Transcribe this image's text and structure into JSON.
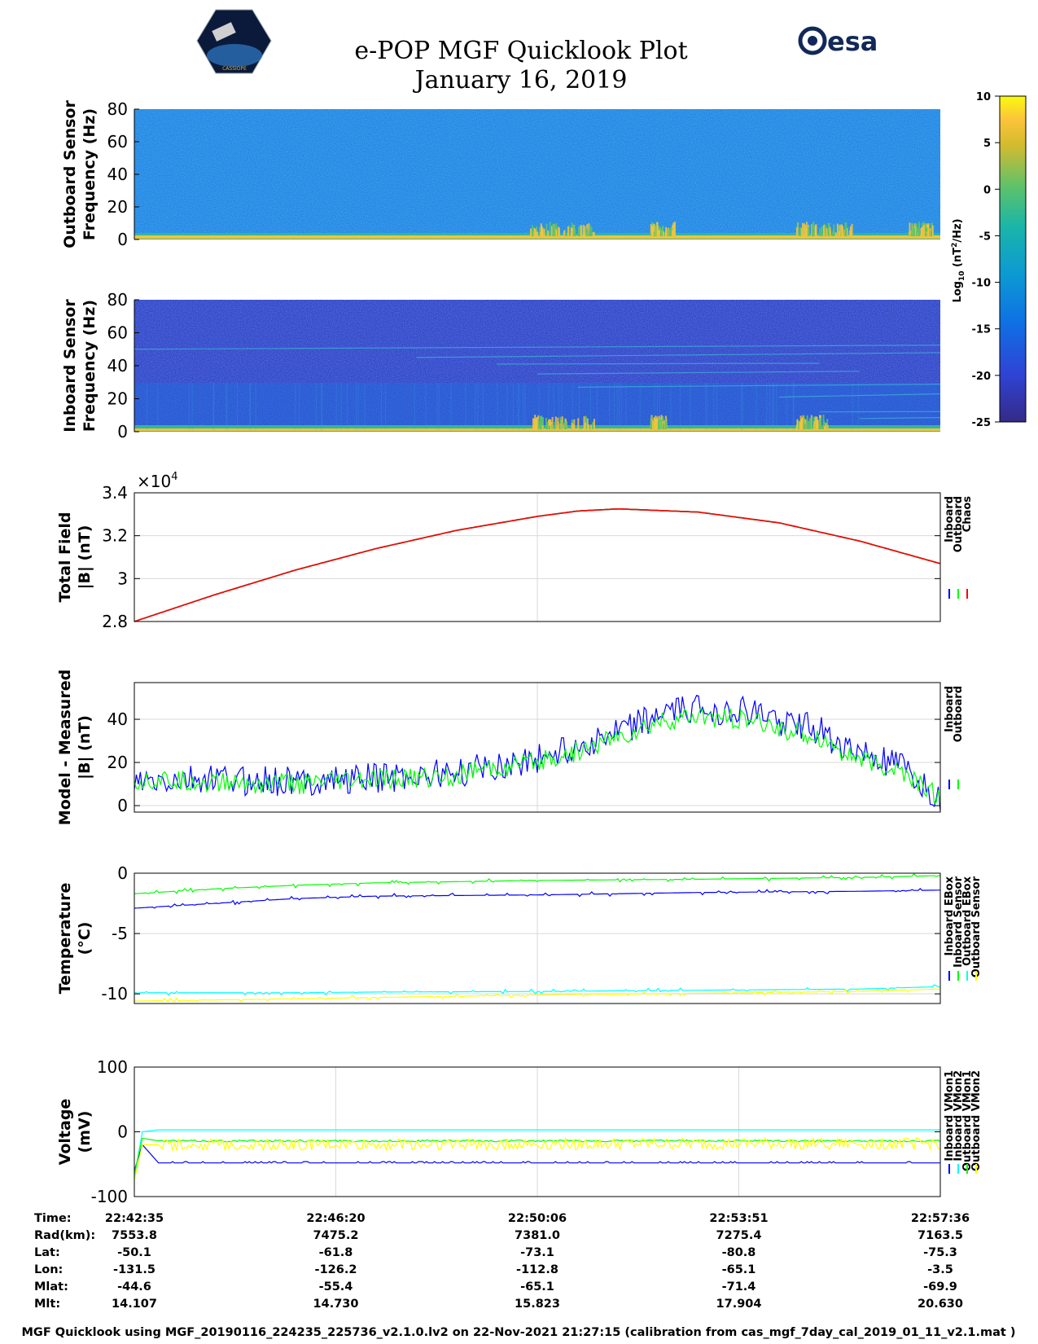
{
  "header": {
    "title": "e-POP MGF Quicklook Plot",
    "date": "January 16, 2019",
    "mission_logo_text": "CASSIOPE",
    "agency_logo_text": "esa"
  },
  "footer": {
    "caption": "MGF Quicklook using MGF_20190116_224235_225736_v2.1.0.lv2 on 22-Nov-2021 21:27:15 (calibration from cas_mgf_7day_cal_2019_01_11_v2.1.mat )"
  },
  "colors": {
    "inboard": "#0000ff",
    "outboard": "#00ff00",
    "chaos": "#ff0000",
    "cyan": "#00ffff",
    "yellow": "#ffff00"
  },
  "ephemeris": {
    "labels": [
      "Time:",
      "Rad(km):",
      "Lat:",
      "Lon:",
      "Mlat:",
      "Mlt:"
    ],
    "columns": [
      [
        "22:42:35",
        "7553.8",
        "-50.1",
        "-131.5",
        "-44.6",
        "14.107"
      ],
      [
        "22:46:20",
        "7475.2",
        "-61.8",
        "-126.2",
        "-55.4",
        "14.730"
      ],
      [
        "22:50:06",
        "7381.0",
        "-73.1",
        "-112.8",
        "-65.1",
        "15.823"
      ],
      [
        "22:53:51",
        "7275.4",
        "-80.8",
        "-65.1",
        "-71.4",
        "17.904"
      ],
      [
        "22:57:36",
        "7163.5",
        "-75.3",
        "-3.5",
        "-69.9",
        "20.630"
      ]
    ]
  },
  "chart_data": [
    {
      "type": "heatmap",
      "id": "outboard_spectrogram",
      "ylabel": "Outboard Sensor",
      "ylabel2": "Frequency (Hz)",
      "ylim": [
        0,
        80
      ],
      "yticks": [
        0,
        20,
        40,
        60,
        80
      ],
      "colorbar": {
        "label": "Log10 (nT2/Hz)",
        "label_main": "Log",
        "label_sub": "10",
        "label_rest": " (nT",
        "label_sup": "2",
        "label_end": "/Hz)",
        "range": [
          -25,
          10
        ],
        "ticks": [
          10,
          5,
          0,
          -5,
          -10,
          -15,
          -20,
          -25
        ]
      }
    },
    {
      "type": "heatmap",
      "id": "inboard_spectrogram",
      "ylabel": "Inboard Sensor",
      "ylabel2": "Frequency (Hz)",
      "ylim": [
        0,
        80
      ],
      "yticks": [
        0,
        20,
        40,
        60,
        80
      ]
    },
    {
      "type": "line",
      "id": "total_field",
      "ylabel": "Total Field",
      "ylabel2": "|B| (nT)",
      "ylim": [
        2.8,
        3.4
      ],
      "yticks": [
        2.8,
        3,
        3.2,
        3.4
      ],
      "exponent_label": "×10",
      "exponent_sup": "4",
      "legend": [
        "Inboard",
        "Outboard",
        "Chaos"
      ],
      "series": [
        {
          "name": "Inboard",
          "x": [
            0,
            0.1,
            0.2,
            0.3,
            0.4,
            0.5,
            0.55,
            0.6,
            0.7,
            0.8,
            0.9,
            1.0
          ],
          "values": [
            2.8,
            2.925,
            3.04,
            3.14,
            3.225,
            3.29,
            3.315,
            3.325,
            3.31,
            3.26,
            3.175,
            3.07
          ]
        },
        {
          "name": "Outboard",
          "x": [
            0,
            0.1,
            0.2,
            0.3,
            0.4,
            0.5,
            0.55,
            0.6,
            0.7,
            0.8,
            0.9,
            1.0
          ],
          "values": [
            2.8,
            2.925,
            3.04,
            3.14,
            3.225,
            3.29,
            3.315,
            3.325,
            3.31,
            3.26,
            3.175,
            3.07
          ]
        },
        {
          "name": "Chaos",
          "x": [
            0,
            0.1,
            0.2,
            0.3,
            0.4,
            0.5,
            0.55,
            0.6,
            0.7,
            0.8,
            0.9,
            1.0
          ],
          "values": [
            2.8,
            2.925,
            3.04,
            3.14,
            3.225,
            3.29,
            3.315,
            3.325,
            3.31,
            3.26,
            3.175,
            3.07
          ]
        }
      ]
    },
    {
      "type": "line",
      "id": "model_minus_measured",
      "ylabel": "Model - Measured",
      "ylabel2": "|B| (nT)",
      "ylim": [
        -3,
        57
      ],
      "yticks": [
        0,
        20,
        40
      ],
      "legend": [
        "Inboard",
        "Outboard"
      ],
      "series": [
        {
          "name": "Inboard",
          "x": [
            0,
            0.1,
            0.2,
            0.3,
            0.4,
            0.5,
            0.6,
            0.65,
            0.7,
            0.75,
            0.85,
            0.88,
            0.9,
            0.95,
            1.0
          ],
          "values": [
            10,
            12,
            11,
            13,
            15,
            22,
            33,
            42,
            45,
            44,
            35,
            27,
            24,
            18,
            2
          ]
        },
        {
          "name": "Outboard",
          "x": [
            0,
            0.1,
            0.2,
            0.3,
            0.4,
            0.5,
            0.6,
            0.65,
            0.7,
            0.75,
            0.85,
            0.88,
            0.9,
            0.95,
            1.0
          ],
          "values": [
            12,
            11,
            10,
            12,
            14,
            20,
            31,
            38,
            41,
            40,
            32,
            25,
            21,
            16,
            4
          ]
        }
      ]
    },
    {
      "type": "line",
      "id": "temperature",
      "ylabel": "Temperature",
      "ylabel2": "(°C)",
      "ylim": [
        -10.8,
        0
      ],
      "yticks": [
        -10,
        -5,
        0
      ],
      "legend": [
        "Inboard EBox",
        "Inboard Sensor",
        "Outboard EBox",
        "Outboard Sensor"
      ],
      "series": [
        {
          "name": "Inboard EBox",
          "x": [
            0,
            0.1,
            0.2,
            0.3,
            0.5,
            0.7,
            0.9,
            1.0
          ],
          "values": [
            -2.9,
            -2.5,
            -2.1,
            -1.9,
            -1.8,
            -1.6,
            -1.5,
            -1.4
          ]
        },
        {
          "name": "Inboard Sensor",
          "x": [
            0,
            0.1,
            0.2,
            0.3,
            0.5,
            0.7,
            0.9,
            1.0
          ],
          "values": [
            -1.7,
            -1.3,
            -1.0,
            -0.8,
            -0.6,
            -0.5,
            -0.35,
            -0.2
          ]
        },
        {
          "name": "Outboard EBox",
          "x": [
            0,
            0.1,
            0.2,
            0.3,
            0.5,
            0.7,
            0.9,
            1.0
          ],
          "values": [
            -9.9,
            -9.9,
            -9.9,
            -9.85,
            -9.8,
            -9.7,
            -9.6,
            -9.4
          ]
        },
        {
          "name": "Outboard Sensor",
          "x": [
            0,
            0.1,
            0.2,
            0.3,
            0.5,
            0.7,
            0.9,
            1.0
          ],
          "values": [
            -10.6,
            -10.5,
            -10.4,
            -10.3,
            -10.1,
            -9.95,
            -9.8,
            -9.6
          ]
        }
      ]
    },
    {
      "type": "line",
      "id": "voltage",
      "ylabel": "Voltage",
      "ylabel2": "(mV)",
      "ylim": [
        -100,
        100
      ],
      "yticks": [
        -100,
        0,
        100
      ],
      "legend": [
        "Inboard VMon1",
        "Inboard VMon2",
        "Outboard VMon1",
        "Outboard VMon2"
      ],
      "series": [
        {
          "name": "Inboard VMon1",
          "x": [
            0,
            0.01,
            0.03,
            1.0
          ],
          "values": [
            -60,
            -20,
            -48,
            -48
          ]
        },
        {
          "name": "Inboard VMon2",
          "x": [
            0,
            0.01,
            0.03,
            1.0
          ],
          "values": [
            -70,
            0,
            3,
            3
          ]
        },
        {
          "name": "Outboard VMon1",
          "x": [
            0,
            0.01,
            0.03,
            1.0
          ],
          "values": [
            -65,
            -10,
            -14,
            -14
          ]
        },
        {
          "name": "Outboard VMon2",
          "x": [
            0,
            0.01,
            0.03,
            1.0
          ],
          "values": [
            -75,
            -20,
            -20,
            -18
          ]
        }
      ]
    }
  ]
}
